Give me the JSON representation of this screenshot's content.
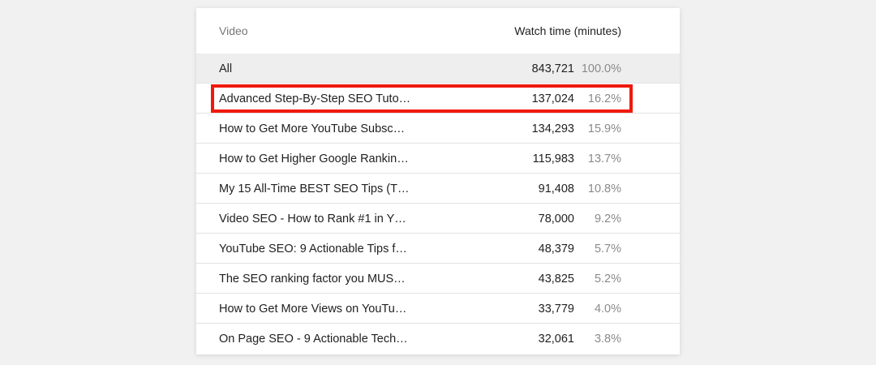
{
  "table": {
    "header": {
      "video_label": "Video",
      "watch_time_label": "Watch time (minutes)"
    },
    "total": {
      "title": "All",
      "value": "843,721",
      "percent": "100.0%"
    },
    "rows": [
      {
        "title": "Advanced Step-By-Step SEO Tuto…",
        "value": "137,024",
        "percent": "16.2%"
      },
      {
        "title": "How to Get More YouTube Subsc…",
        "value": "134,293",
        "percent": "15.9%"
      },
      {
        "title": "How to Get Higher Google Rankin…",
        "value": "115,983",
        "percent": "13.7%"
      },
      {
        "title": "My 15 All-Time BEST SEO Tips (T…",
        "value": "91,408",
        "percent": "10.8%"
      },
      {
        "title": "Video SEO - How to Rank #1 in Y…",
        "value": "78,000",
        "percent": "9.2%"
      },
      {
        "title": "YouTube SEO: 9 Actionable Tips f…",
        "value": "48,379",
        "percent": "5.7%"
      },
      {
        "title": "The SEO ranking factor you MUS…",
        "value": "43,825",
        "percent": "5.2%"
      },
      {
        "title": "How to Get More Views on YouTu…",
        "value": "33,779",
        "percent": "4.0%"
      },
      {
        "title": "On Page SEO - 9 Actionable Tech…",
        "value": "32,061",
        "percent": "3.8%"
      }
    ]
  },
  "colors": {
    "highlight_border": "#f0190a",
    "total_row_bg": "#eeeeee",
    "page_bg": "#f1f1f1"
  }
}
